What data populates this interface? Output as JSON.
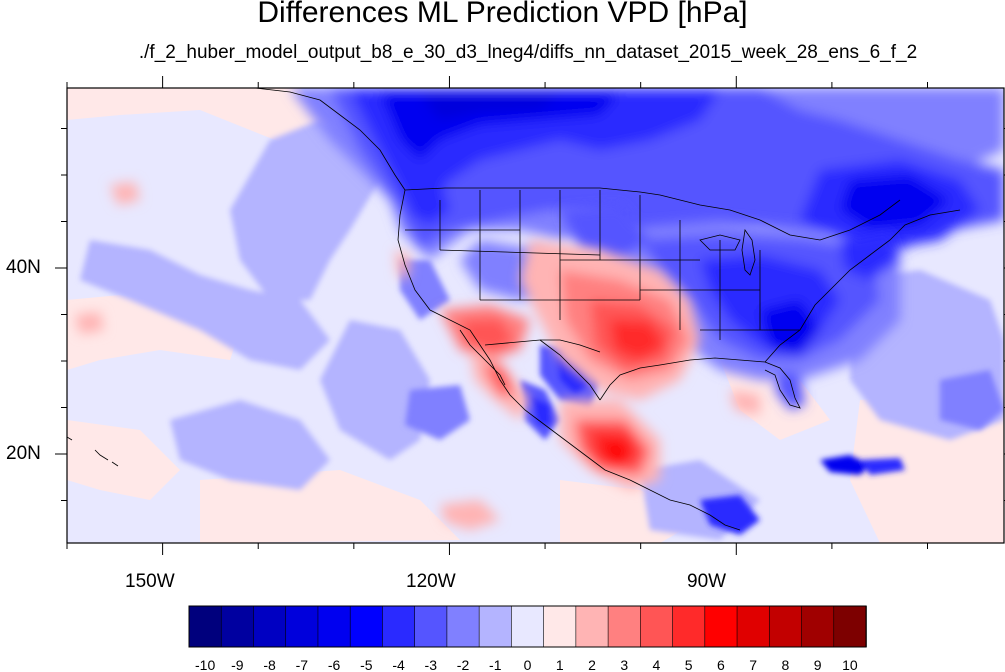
{
  "title": "Differences ML Prediction VPD [hPa]",
  "subtitle": "./f_2_huber_model_output_b8_e_30_d3_lneg4/diffs_nn_dataset_2015_week_28_ens_6_f_2",
  "axes": {
    "lon_labels": [
      "150W",
      "120W",
      "90W"
    ],
    "lat_labels": [
      "40N",
      "20N"
    ]
  },
  "colorbar": {
    "levels": [
      "-10",
      "-9",
      "-8",
      "-7",
      "-6",
      "-5",
      "-4",
      "-3",
      "-2",
      "-1",
      "0",
      "1",
      "2",
      "3",
      "4",
      "5",
      "6",
      "7",
      "8",
      "9",
      "10"
    ],
    "colors": [
      "#00007d",
      "#0000a0",
      "#0000c2",
      "#0000dc",
      "#0000f0",
      "#0000ff",
      "#2a2aff",
      "#5555ff",
      "#8080ff",
      "#b4b4ff",
      "#e8e8ff",
      "#ffe8e8",
      "#ffb4b4",
      "#ff8080",
      "#ff5555",
      "#ff2a2a",
      "#ff0000",
      "#e00000",
      "#c20000",
      "#a00000",
      "#7d0000"
    ]
  },
  "map_data": {
    "extent": {
      "lon_min": -160,
      "lon_max": -62,
      "lat_min": 11,
      "lat_max": 59
    },
    "background_color": "#e8e8ff",
    "ocean_positive_color": "#ffe8e8"
  }
}
